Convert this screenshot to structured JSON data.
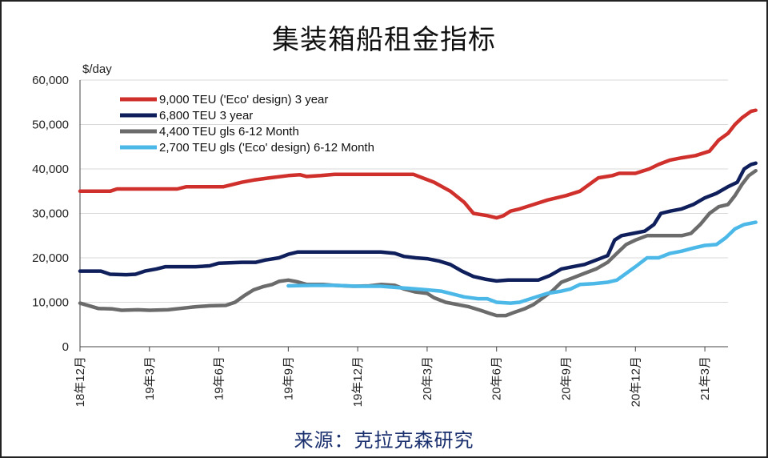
{
  "title": "集装箱船租金指标",
  "source": "来源：克拉克森研究",
  "chart_data": {
    "type": "line",
    "y_unit": "$/day",
    "ylim": [
      0,
      60000
    ],
    "y_ticks": [
      "0",
      "10,000",
      "20,000",
      "30,000",
      "40,000",
      "50,000",
      "60,000"
    ],
    "x_ticks": [
      "18年12月",
      "19年3月",
      "19年6月",
      "19年9月",
      "19年12月",
      "20年3月",
      "20年6月",
      "20年9月",
      "20年12月",
      "21年3月"
    ],
    "x_start": "2018-12",
    "x_end": "2021-04",
    "grid": "horizontal",
    "legend_position": "top-left",
    "series": [
      {
        "name": "9,000 TEU ('Eco' design) 3 year",
        "color": "#d0302c",
        "points": [
          [
            0,
            35000
          ],
          [
            1.3,
            35000
          ],
          [
            1.6,
            35500
          ],
          [
            3.0,
            35500
          ],
          [
            4.2,
            35500
          ],
          [
            4.6,
            36000
          ],
          [
            6.2,
            36000
          ],
          [
            7.0,
            37000
          ],
          [
            7.5,
            37500
          ],
          [
            8.2,
            38000
          ],
          [
            9.0,
            38500
          ],
          [
            9.5,
            38700
          ],
          [
            9.8,
            38300
          ],
          [
            10.4,
            38500
          ],
          [
            11.0,
            38800
          ],
          [
            12.0,
            38800
          ],
          [
            13.0,
            38800
          ],
          [
            14.0,
            38800
          ],
          [
            14.4,
            38800
          ],
          [
            14.8,
            38000
          ],
          [
            15.3,
            37000
          ],
          [
            16.0,
            35000
          ],
          [
            16.6,
            32500
          ],
          [
            17.0,
            30000
          ],
          [
            17.6,
            29500
          ],
          [
            18.0,
            29000
          ],
          [
            18.3,
            29500
          ],
          [
            18.6,
            30500
          ],
          [
            19.0,
            31000
          ],
          [
            19.6,
            32000
          ],
          [
            20.2,
            33000
          ],
          [
            21.0,
            34000
          ],
          [
            21.6,
            35000
          ],
          [
            22.0,
            36500
          ],
          [
            22.4,
            38000
          ],
          [
            23.0,
            38500
          ],
          [
            23.3,
            39000
          ],
          [
            24.0,
            39000
          ],
          [
            24.6,
            40000
          ],
          [
            25.0,
            41000
          ],
          [
            25.5,
            42000
          ],
          [
            26.0,
            42500
          ],
          [
            26.6,
            43000
          ],
          [
            27.2,
            44000
          ],
          [
            27.6,
            46500
          ],
          [
            28.0,
            48000
          ],
          [
            28.3,
            50000
          ],
          [
            28.6,
            51500
          ],
          [
            29.0,
            53000
          ],
          [
            29.2,
            53200
          ]
        ]
      },
      {
        "name": "6,800 TEU 3 year",
        "color": "#0f1f5c",
        "points": [
          [
            0,
            17000
          ],
          [
            0.9,
            17000
          ],
          [
            1.3,
            16300
          ],
          [
            2.0,
            16200
          ],
          [
            2.4,
            16300
          ],
          [
            2.8,
            17000
          ],
          [
            3.3,
            17500
          ],
          [
            3.7,
            18000
          ],
          [
            5.0,
            18000
          ],
          [
            5.6,
            18200
          ],
          [
            6.0,
            18800
          ],
          [
            7.0,
            19000
          ],
          [
            7.6,
            19000
          ],
          [
            8.0,
            19500
          ],
          [
            8.6,
            20000
          ],
          [
            9.0,
            20800
          ],
          [
            9.4,
            21300
          ],
          [
            10.0,
            21300
          ],
          [
            11.0,
            21300
          ],
          [
            12.0,
            21300
          ],
          [
            13.0,
            21300
          ],
          [
            13.6,
            21000
          ],
          [
            14.0,
            20300
          ],
          [
            14.5,
            20000
          ],
          [
            15.0,
            19800
          ],
          [
            15.5,
            19300
          ],
          [
            16.0,
            18500
          ],
          [
            16.5,
            17000
          ],
          [
            17.0,
            15800
          ],
          [
            17.5,
            15200
          ],
          [
            18.0,
            14800
          ],
          [
            18.5,
            15000
          ],
          [
            19.0,
            15000
          ],
          [
            19.8,
            15000
          ],
          [
            20.3,
            16000
          ],
          [
            20.8,
            17500
          ],
          [
            21.3,
            18000
          ],
          [
            21.8,
            18500
          ],
          [
            22.3,
            19500
          ],
          [
            22.8,
            20500
          ],
          [
            23.1,
            24000
          ],
          [
            23.4,
            25000
          ],
          [
            23.9,
            25500
          ],
          [
            24.4,
            26000
          ],
          [
            24.8,
            27500
          ],
          [
            25.1,
            30000
          ],
          [
            25.5,
            30500
          ],
          [
            26.0,
            31000
          ],
          [
            26.5,
            32000
          ],
          [
            27.0,
            33500
          ],
          [
            27.5,
            34500
          ],
          [
            28.0,
            36000
          ],
          [
            28.4,
            37000
          ],
          [
            28.7,
            40000
          ],
          [
            29.0,
            41000
          ],
          [
            29.2,
            41300
          ]
        ]
      },
      {
        "name": "4,400 TEU gls 6-12 Month",
        "color": "#6b6b6b",
        "points": [
          [
            0,
            9800
          ],
          [
            0.4,
            9200
          ],
          [
            0.8,
            8600
          ],
          [
            1.4,
            8500
          ],
          [
            1.8,
            8200
          ],
          [
            2.5,
            8300
          ],
          [
            3.0,
            8200
          ],
          [
            3.8,
            8300
          ],
          [
            4.3,
            8600
          ],
          [
            5.0,
            9000
          ],
          [
            5.6,
            9200
          ],
          [
            6.3,
            9300
          ],
          [
            6.7,
            10000
          ],
          [
            7.1,
            11500
          ],
          [
            7.5,
            12800
          ],
          [
            7.9,
            13500
          ],
          [
            8.3,
            14000
          ],
          [
            8.6,
            14700
          ],
          [
            9.0,
            15000
          ],
          [
            9.4,
            14600
          ],
          [
            9.8,
            14000
          ],
          [
            10.5,
            14000
          ],
          [
            11.0,
            13800
          ],
          [
            11.8,
            13600
          ],
          [
            12.5,
            13700
          ],
          [
            13.0,
            14000
          ],
          [
            13.6,
            13800
          ],
          [
            14.0,
            13000
          ],
          [
            14.5,
            12300
          ],
          [
            15.0,
            12000
          ],
          [
            15.3,
            11000
          ],
          [
            15.8,
            10000
          ],
          [
            16.3,
            9500
          ],
          [
            16.8,
            9000
          ],
          [
            17.3,
            8200
          ],
          [
            17.7,
            7500
          ],
          [
            18.0,
            7000
          ],
          [
            18.4,
            7000
          ],
          [
            18.8,
            7800
          ],
          [
            19.2,
            8500
          ],
          [
            19.6,
            9500
          ],
          [
            20.0,
            11000
          ],
          [
            20.4,
            12500
          ],
          [
            20.8,
            14500
          ],
          [
            21.3,
            15500
          ],
          [
            21.8,
            16500
          ],
          [
            22.3,
            17500
          ],
          [
            22.8,
            19000
          ],
          [
            23.2,
            21000
          ],
          [
            23.6,
            23000
          ],
          [
            24.0,
            24000
          ],
          [
            24.5,
            25000
          ],
          [
            25.0,
            25000
          ],
          [
            25.5,
            25000
          ],
          [
            26.0,
            25000
          ],
          [
            26.4,
            25500
          ],
          [
            26.8,
            27500
          ],
          [
            27.2,
            30000
          ],
          [
            27.6,
            31500
          ],
          [
            28.0,
            32000
          ],
          [
            28.3,
            34000
          ],
          [
            28.6,
            36500
          ],
          [
            28.9,
            38500
          ],
          [
            29.2,
            39600
          ]
        ]
      },
      {
        "name": "2,700 TEU gls ('Eco' design) 6-12 Month",
        "color": "#4cb8e8",
        "points": [
          [
            9.0,
            13700
          ],
          [
            10.0,
            13800
          ],
          [
            11.0,
            13800
          ],
          [
            12.0,
            13600
          ],
          [
            13.0,
            13600
          ],
          [
            14.0,
            13200
          ],
          [
            15.0,
            12800
          ],
          [
            15.6,
            12500
          ],
          [
            16.0,
            12000
          ],
          [
            16.6,
            11200
          ],
          [
            17.2,
            10800
          ],
          [
            17.6,
            10800
          ],
          [
            18.0,
            10000
          ],
          [
            18.6,
            9800
          ],
          [
            19.0,
            10000
          ],
          [
            19.6,
            11000
          ],
          [
            20.2,
            12000
          ],
          [
            20.8,
            12500
          ],
          [
            21.2,
            13000
          ],
          [
            21.6,
            14000
          ],
          [
            22.2,
            14200
          ],
          [
            22.8,
            14500
          ],
          [
            23.2,
            15000
          ],
          [
            23.6,
            16500
          ],
          [
            24.0,
            18000
          ],
          [
            24.5,
            20000
          ],
          [
            25.0,
            20000
          ],
          [
            25.5,
            21000
          ],
          [
            26.0,
            21500
          ],
          [
            26.5,
            22200
          ],
          [
            27.0,
            22800
          ],
          [
            27.5,
            23000
          ],
          [
            27.9,
            24500
          ],
          [
            28.3,
            26500
          ],
          [
            28.7,
            27500
          ],
          [
            29.2,
            28000
          ]
        ]
      }
    ]
  }
}
